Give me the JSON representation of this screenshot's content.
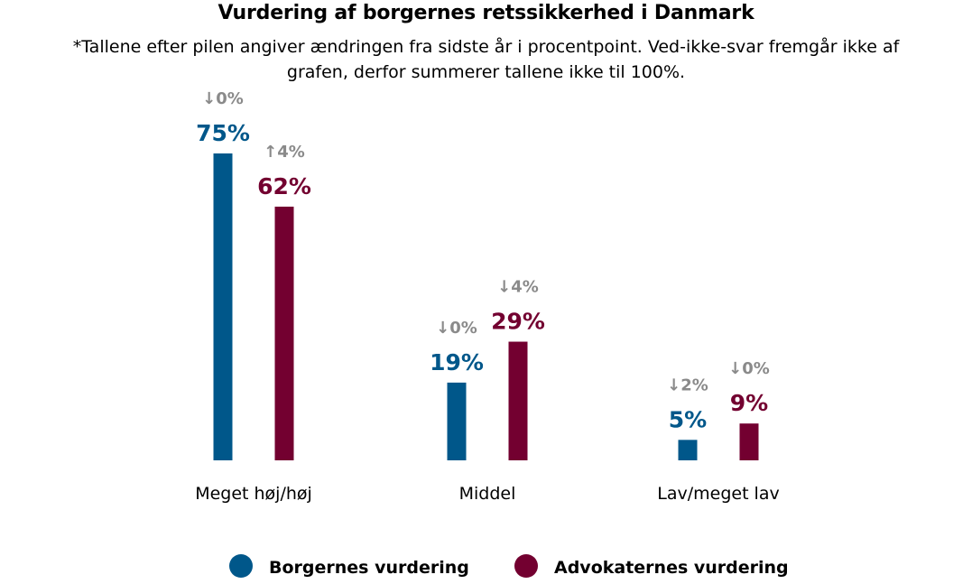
{
  "chart_data": {
    "type": "bar",
    "title": "Vurdering af borgernes retssikkerhed i Danmark",
    "subtitle": "*Tallene efter pilen angiver ændringen fra sidste år i procentpoint. Ved-ikke-svar fremgår ikke af grafen, derfor summerer tallene ikke til 100%.",
    "categories": [
      "Meget høj/høj",
      "Middel",
      "Lav/meget lav"
    ],
    "series": [
      {
        "name": "Borgernes vurdering",
        "color": "#00578a",
        "values": [
          75,
          19,
          5
        ],
        "value_labels": [
          "75%",
          "19%",
          "5%"
        ],
        "change_labels": [
          "↓0%",
          "↓0%",
          "↓2%"
        ]
      },
      {
        "name": "Advokaternes vurdering",
        "color": "#730030",
        "values": [
          62,
          29,
          9
        ],
        "value_labels": [
          "62%",
          "29%",
          "9%"
        ],
        "change_labels": [
          "↑4%",
          "↓4%",
          "↓0%"
        ]
      }
    ],
    "ylim": [
      0,
      75
    ],
    "grid": false,
    "legend_position": "bottom",
    "change_label_color": "#8a8a8a"
  }
}
